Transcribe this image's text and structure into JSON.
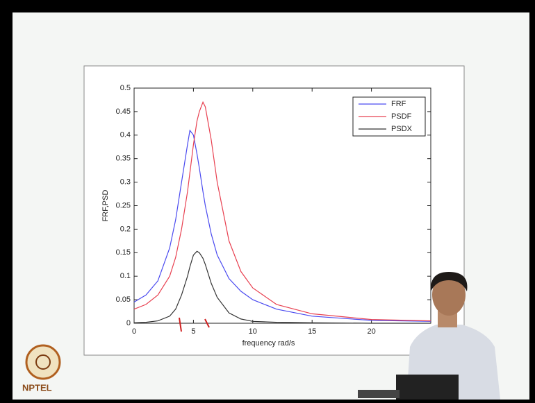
{
  "chart_data": {
    "type": "line",
    "xlabel": "frequency rad/s",
    "ylabel": "FRF,PSD",
    "x": [
      0,
      1,
      2,
      3,
      3.5,
      4,
      4.5,
      4.7,
      5,
      5.3,
      5.5,
      5.8,
      6,
      6.5,
      7,
      8,
      9,
      10,
      12,
      15,
      20,
      25
    ],
    "series": [
      {
        "name": "FRF",
        "color": "#4a4af0",
        "values": [
          0.045,
          0.06,
          0.09,
          0.16,
          0.22,
          0.3,
          0.38,
          0.41,
          0.4,
          0.36,
          0.33,
          0.28,
          0.25,
          0.19,
          0.145,
          0.095,
          0.068,
          0.05,
          0.03,
          0.015,
          0.006,
          0.004
        ]
      },
      {
        "name": "PSDF",
        "color": "#e84050",
        "values": [
          0.03,
          0.04,
          0.06,
          0.1,
          0.14,
          0.2,
          0.28,
          0.32,
          0.38,
          0.43,
          0.45,
          0.47,
          0.46,
          0.39,
          0.3,
          0.175,
          0.11,
          0.075,
          0.04,
          0.02,
          0.008,
          0.005
        ]
      },
      {
        "name": "PSDX",
        "color": "#333333",
        "values": [
          0.001,
          0.002,
          0.005,
          0.015,
          0.03,
          0.06,
          0.1,
          0.12,
          0.145,
          0.153,
          0.15,
          0.138,
          0.125,
          0.085,
          0.055,
          0.022,
          0.009,
          0.004,
          0.002,
          0.001,
          0,
          0
        ]
      }
    ],
    "xlim": [
      0,
      25
    ],
    "xticks": [
      0,
      5,
      10,
      15,
      20
    ],
    "ylim": [
      0,
      0.5
    ],
    "yticks": [
      0,
      0.05,
      0.1,
      0.15,
      0.2,
      0.25,
      0.3,
      0.35,
      0.4,
      0.45,
      0.5
    ],
    "legend": "upper right",
    "logo": "NPTEL"
  }
}
